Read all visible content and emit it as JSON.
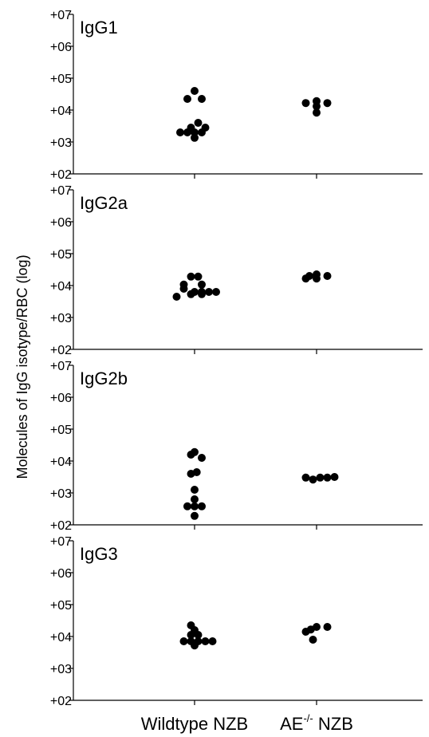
{
  "chart_data": {
    "type": "scatter",
    "ylabel": "Molecules of IgG isotype/RBC (log)",
    "categories": [
      {
        "label": "Wildtype NZB",
        "sup": ""
      },
      {
        "label": "AE",
        "sup": "-/-",
        "suffix": " NZB"
      }
    ],
    "y_scale": "log10",
    "ylim": [
      2,
      7
    ],
    "y_ticks": [
      {
        "value": 2,
        "label": "+02"
      },
      {
        "value": 3,
        "label": "+03"
      },
      {
        "value": 4,
        "label": "+04"
      },
      {
        "value": 5,
        "label": "+05"
      },
      {
        "value": 6,
        "label": "+06"
      },
      {
        "value": 7,
        "label": "+07"
      }
    ],
    "panels": [
      {
        "title": "IgG1",
        "series": [
          {
            "category": 0,
            "points": [
              {
                "y": 4.6,
                "offset": 0
              },
              {
                "y": 4.35,
                "offset": -1
              },
              {
                "y": 4.35,
                "offset": 1
              },
              {
                "y": 3.6,
                "offset": 0.5
              },
              {
                "y": 3.45,
                "offset": -0.5
              },
              {
                "y": 3.45,
                "offset": 1.5
              },
              {
                "y": 3.3,
                "offset": -2
              },
              {
                "y": 3.3,
                "offset": -1
              },
              {
                "y": 3.3,
                "offset": 0
              },
              {
                "y": 3.3,
                "offset": 1
              },
              {
                "y": 3.13,
                "offset": 0
              }
            ]
          },
          {
            "category": 1,
            "points": [
              {
                "y": 4.28,
                "offset": 0
              },
              {
                "y": 4.22,
                "offset": -1.5
              },
              {
                "y": 4.22,
                "offset": 1.5
              },
              {
                "y": 4.12,
                "offset": 0
              },
              {
                "y": 3.92,
                "offset": 0
              }
            ]
          }
        ]
      },
      {
        "title": "IgG2a",
        "series": [
          {
            "category": 0,
            "points": [
              {
                "y": 4.28,
                "offset": -0.5
              },
              {
                "y": 4.28,
                "offset": 0.5
              },
              {
                "y": 4.03,
                "offset": -1.5
              },
              {
                "y": 4.03,
                "offset": 1
              },
              {
                "y": 3.9,
                "offset": -1.5
              },
              {
                "y": 3.8,
                "offset": 0
              },
              {
                "y": 3.8,
                "offset": 1
              },
              {
                "y": 3.8,
                "offset": 2
              },
              {
                "y": 3.8,
                "offset": 3
              },
              {
                "y": 3.73,
                "offset": -0.5
              },
              {
                "y": 3.73,
                "offset": 1
              },
              {
                "y": 3.65,
                "offset": -2.5
              }
            ]
          },
          {
            "category": 1,
            "points": [
              {
                "y": 4.35,
                "offset": 0
              },
              {
                "y": 4.3,
                "offset": -1
              },
              {
                "y": 4.3,
                "offset": 1.5
              },
              {
                "y": 4.22,
                "offset": -1.5
              },
              {
                "y": 4.22,
                "offset": 0
              }
            ]
          }
        ]
      },
      {
        "title": "IgG2b",
        "series": [
          {
            "category": 0,
            "points": [
              {
                "y": 4.28,
                "offset": 0
              },
              {
                "y": 4.2,
                "offset": -0.5
              },
              {
                "y": 4.1,
                "offset": 1
              },
              {
                "y": 3.6,
                "offset": -0.5
              },
              {
                "y": 3.65,
                "offset": 0.3
              },
              {
                "y": 3.1,
                "offset": 0
              },
              {
                "y": 2.8,
                "offset": 0
              },
              {
                "y": 2.58,
                "offset": -1
              },
              {
                "y": 2.58,
                "offset": 0
              },
              {
                "y": 2.58,
                "offset": 1
              },
              {
                "y": 2.28,
                "offset": 0
              }
            ]
          },
          {
            "category": 1,
            "points": [
              {
                "y": 3.48,
                "offset": -1.5
              },
              {
                "y": 3.42,
                "offset": -0.5
              },
              {
                "y": 3.48,
                "offset": 0.5
              },
              {
                "y": 3.48,
                "offset": 1.5
              },
              {
                "y": 3.5,
                "offset": 2.5
              }
            ]
          }
        ]
      },
      {
        "title": "IgG3",
        "series": [
          {
            "category": 0,
            "points": [
              {
                "y": 4.35,
                "offset": -0.5
              },
              {
                "y": 4.2,
                "offset": 0
              },
              {
                "y": 4.05,
                "offset": -0.5
              },
              {
                "y": 4.05,
                "offset": 0.5
              },
              {
                "y": 3.85,
                "offset": -1.5
              },
              {
                "y": 3.85,
                "offset": -0.5
              },
              {
                "y": 3.85,
                "offset": 0.5
              },
              {
                "y": 3.85,
                "offset": 1.5
              },
              {
                "y": 3.85,
                "offset": 2.5
              },
              {
                "y": 3.72,
                "offset": 0
              }
            ]
          },
          {
            "category": 1,
            "points": [
              {
                "y": 4.3,
                "offset": 0
              },
              {
                "y": 4.3,
                "offset": 1.5
              },
              {
                "y": 4.22,
                "offset": -0.8
              },
              {
                "y": 4.15,
                "offset": -1.5
              },
              {
                "y": 3.9,
                "offset": -0.5
              }
            ]
          }
        ]
      }
    ],
    "marker_color": "#000000",
    "axis_color": "#000000",
    "grid": false
  }
}
